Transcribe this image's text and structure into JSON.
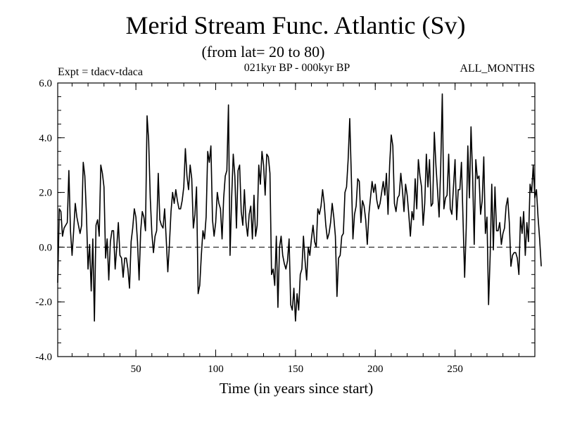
{
  "chart_data": {
    "type": "line",
    "title": "Merid Stream Func. Atlantic (Sv)",
    "subtitle": "(from lat= 20 to 80)",
    "experiment": "Expt = tdacv-tdaca",
    "period": "021kyr BP - 000kyr BP",
    "months": "ALL_MONTHS",
    "xlabel": "Time (in years since start)",
    "ylabel": "",
    "xlim": [
      1,
      300
    ],
    "ylim": [
      -4.0,
      6.0
    ],
    "xticks": [
      50,
      100,
      150,
      200,
      250
    ],
    "yticks": [
      -4.0,
      -2.0,
      0.0,
      2.0,
      4.0,
      6.0
    ],
    "xtick_labels": [
      "50",
      "100",
      "150",
      "200",
      "250"
    ],
    "ytick_labels": [
      "-4.0",
      "-2.0",
      "0.0",
      "2.0",
      "4.0",
      "6.0"
    ],
    "reference_line": {
      "y": 0.0,
      "style": "dashed"
    },
    "grid": false,
    "series": [
      {
        "name": "Merid Stream Func. Atlantic",
        "x_start": 1,
        "x_step": 1,
        "values": [
          -1.3,
          1.4,
          1.3,
          0.4,
          0.7,
          0.8,
          0.9,
          2.8,
          0.6,
          -0.3,
          0.6,
          1.6,
          1.1,
          0.8,
          0.5,
          0.8,
          3.1,
          2.6,
          1.2,
          -0.8,
          0.1,
          -1.6,
          0.3,
          -2.7,
          0.8,
          1.0,
          0.4,
          3.0,
          2.7,
          2.2,
          -0.4,
          0.3,
          -1.2,
          0.2,
          0.6,
          0.6,
          -0.8,
          0.0,
          0.9,
          -0.3,
          -0.4,
          -1.1,
          -0.4,
          -0.4,
          -0.8,
          -1.5,
          0.2,
          0.7,
          1.4,
          1.1,
          0.2,
          -1.2,
          0.6,
          1.3,
          1.1,
          0.6,
          4.8,
          3.9,
          1.8,
          0.5,
          -0.2,
          0.4,
          0.6,
          2.7,
          1.0,
          0.8,
          0.7,
          1.4,
          0.3,
          -0.9,
          0.1,
          1.3,
          2.0,
          1.6,
          2.1,
          1.7,
          1.4,
          1.4,
          1.7,
          2.2,
          3.6,
          2.6,
          2.1,
          3.0,
          2.5,
          0.7,
          1.2,
          2.2,
          -1.7,
          -1.4,
          -0.3,
          0.6,
          0.3,
          1.1,
          3.5,
          3.1,
          3.7,
          1.0,
          0.4,
          0.9,
          2.0,
          1.6,
          1.4,
          0.3,
          1.8,
          2.6,
          2.8,
          5.2,
          -0.3,
          1.8,
          3.4,
          2.6,
          0.7,
          2.8,
          3.0,
          1.3,
          0.8,
          2.1,
          0.9,
          0.4,
          1.2,
          1.5,
          0.3,
          1.9,
          0.4,
          0.8,
          3.0,
          2.3,
          3.5,
          3.0,
          1.9,
          3.4,
          3.3,
          2.7,
          -1.0,
          -0.8,
          -1.4,
          0.4,
          -2.2,
          0.0,
          0.4,
          -0.3,
          -0.6,
          -0.8,
          -0.5,
          0.3,
          -2.1,
          -2.3,
          -1.5,
          -2.7,
          -1.7,
          -2.3,
          -1.0,
          -0.8,
          0.4,
          -0.5,
          -1.2,
          0.0,
          -0.3,
          0.3,
          0.8,
          0.2,
          0.0,
          1.4,
          1.2,
          1.5,
          2.1,
          1.6,
          0.8,
          0.3,
          0.5,
          0.9,
          1.6,
          1.1,
          0.4,
          -1.8,
          -0.4,
          -0.3,
          0.4,
          0.5,
          2.0,
          2.2,
          3.2,
          4.7,
          2.6,
          0.3,
          1.2,
          1.5,
          2.5,
          2.4,
          0.9,
          1.7,
          1.5,
          1.0,
          0.1,
          1.2,
          1.8,
          2.4,
          2.0,
          2.3,
          1.7,
          1.4,
          1.6,
          2.0,
          2.4,
          1.9,
          2.7,
          1.2,
          3.0,
          4.1,
          3.7,
          1.6,
          1.3,
          1.8,
          1.9,
          2.7,
          2.1,
          1.3,
          2.3,
          1.9,
          1.2,
          0.4,
          1.3,
          1.0,
          2.5,
          1.4,
          3.2,
          2.6,
          2.2,
          0.8,
          1.6,
          3.4,
          2.2,
          3.2,
          1.5,
          1.6,
          4.2,
          3.0,
          2.1,
          1.1,
          2.9,
          5.6,
          1.4,
          1.8,
          1.9,
          3.4,
          1.4,
          1.2,
          2.2,
          3.2,
          1.0,
          2.1,
          2.1,
          3.1,
          1.0,
          -1.1,
          0.7,
          3.7,
          1.8,
          4.4,
          2.6,
          0.1,
          3.2,
          2.5,
          2.6,
          1.2,
          1.7,
          3.3,
          0.5,
          1.1,
          -2.1,
          -0.3,
          2.3,
          -0.1,
          2.2,
          0.6,
          0.6,
          0.9,
          0.1,
          0.5,
          0.7,
          1.5,
          1.8,
          0.9,
          -0.7,
          -0.3,
          -0.2,
          -0.2,
          -0.4,
          -1.0,
          1.1,
          0.5,
          1.3,
          -0.3,
          0.9,
          0.2,
          2.3,
          2.0,
          3.0,
          1.8,
          2.1,
          1.1,
          0.3,
          -0.7
        ]
      }
    ]
  }
}
